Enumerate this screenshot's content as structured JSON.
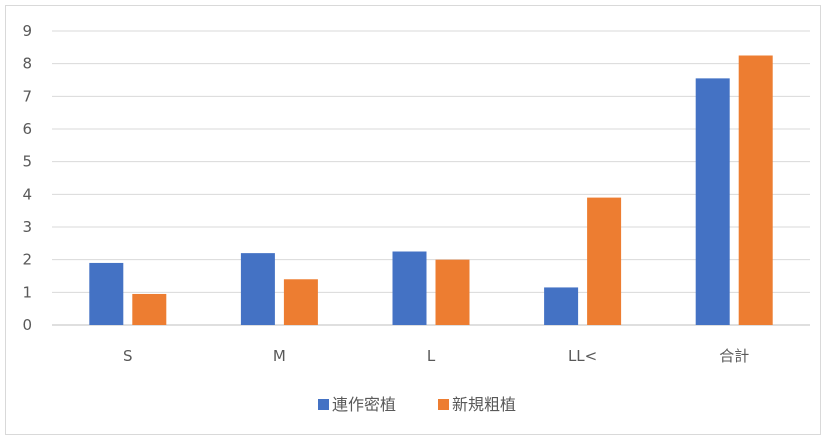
{
  "chart_data": {
    "type": "bar",
    "categories": [
      "S",
      "M",
      "L",
      "LL<",
      "合計"
    ],
    "series": [
      {
        "name": "連作密植",
        "color": "#4472c4",
        "values": [
          1.9,
          2.2,
          2.25,
          1.15,
          7.55
        ]
      },
      {
        "name": "新規粗植",
        "color": "#ed7d31",
        "values": [
          0.95,
          1.4,
          2.0,
          3.9,
          8.25
        ]
      }
    ],
    "ylim": [
      0,
      9
    ],
    "yticks": [
      "0",
      "1",
      "2",
      "3",
      "4",
      "5",
      "6",
      "7",
      "8",
      "9"
    ],
    "grid": true,
    "legend": "bottom"
  }
}
